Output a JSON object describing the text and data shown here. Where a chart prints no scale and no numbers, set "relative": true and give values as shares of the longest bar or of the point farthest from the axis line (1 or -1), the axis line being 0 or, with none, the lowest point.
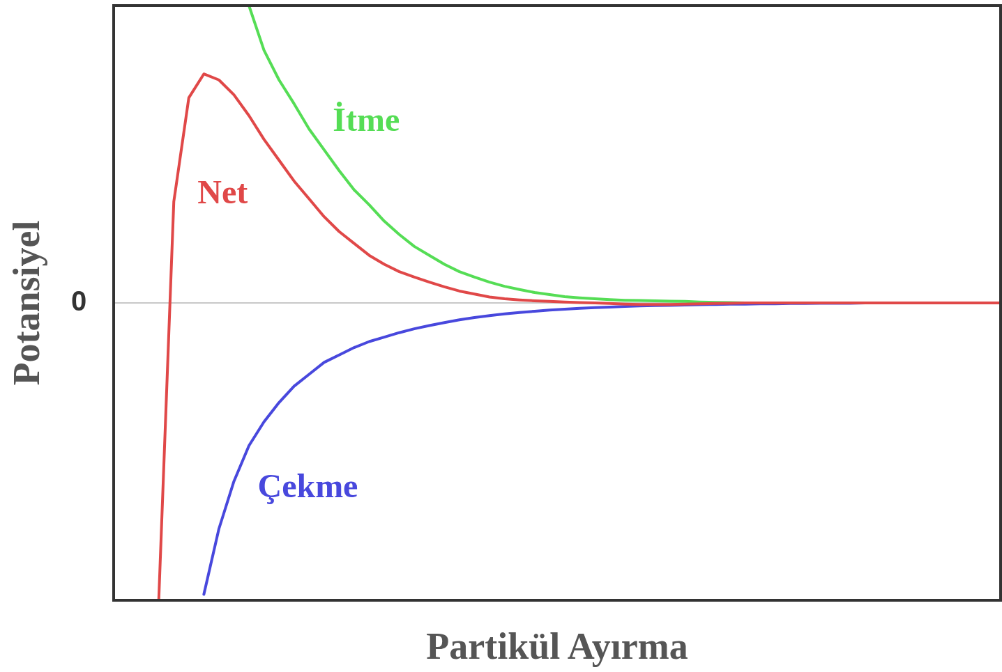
{
  "chart_data": {
    "type": "line",
    "relative": true,
    "xlabel": "Partikül Ayırma",
    "ylabel": "Potansiyel",
    "categories": [
      null,
      null,
      null,
      null,
      null,
      null,
      null,
      null,
      null,
      null,
      null,
      null,
      null,
      null,
      null,
      null,
      null,
      null,
      null,
      null,
      null,
      null,
      null,
      null,
      null,
      null,
      null,
      null,
      null,
      null,
      null,
      null,
      null,
      null,
      null,
      null,
      null,
      null,
      null,
      null,
      null,
      null,
      null,
      null,
      null,
      null,
      null,
      null,
      null,
      null,
      null,
      null,
      null,
      null,
      null,
      null,
      null,
      null,
      null,
      null
    ],
    "series": [
      {
        "name": "Net",
        "color": "#e04848",
        "values": [
          null,
          null,
          null,
          -1.0,
          0.34,
          0.69,
          0.77,
          0.75,
          0.7,
          0.63,
          0.55,
          0.48,
          0.41,
          0.35,
          0.29,
          0.24,
          0.2,
          0.16,
          0.13,
          0.105,
          0.087,
          0.07,
          0.054,
          0.04,
          0.03,
          0.02,
          0.014,
          0.01,
          0.007,
          0.005,
          0.003,
          0.001,
          0,
          -0.002,
          -0.004,
          -0.005,
          -0.005,
          -0.005,
          -0.004,
          -0.003,
          -0.002,
          -0.001,
          0,
          0,
          0,
          0,
          0,
          0,
          0,
          0,
          0,
          0,
          0,
          0,
          0,
          0,
          0,
          0,
          0,
          0
        ]
      },
      {
        "name": "İtme",
        "color": "#55dd55",
        "values": [
          null,
          null,
          null,
          null,
          null,
          null,
          null,
          null,
          null,
          1.0,
          0.85,
          0.75,
          0.67,
          0.585,
          0.515,
          0.445,
          0.38,
          0.33,
          0.275,
          0.23,
          0.19,
          0.16,
          0.13,
          0.105,
          0.087,
          0.07,
          0.056,
          0.045,
          0.035,
          0.028,
          0.021,
          0.017,
          0.014,
          0.011,
          0.009,
          0.008,
          0.007,
          0.006,
          0.005,
          0.003,
          0.002,
          0.001,
          0,
          null,
          null,
          null,
          null,
          null,
          null,
          null,
          null,
          null,
          null,
          null,
          null,
          null,
          null,
          null,
          null,
          null
        ]
      },
      {
        "name": "Çekme",
        "color": "#4848dd",
        "values": [
          null,
          null,
          null,
          null,
          null,
          null,
          -0.98,
          -0.76,
          -0.6,
          -0.48,
          -0.4,
          -0.335,
          -0.28,
          -0.24,
          -0.2,
          -0.175,
          -0.15,
          -0.13,
          -0.115,
          -0.1,
          -0.087,
          -0.076,
          -0.066,
          -0.057,
          -0.049,
          -0.043,
          -0.037,
          -0.032,
          -0.028,
          -0.024,
          -0.021,
          -0.018,
          -0.016,
          -0.014,
          -0.012,
          -0.01,
          -0.009,
          -0.008,
          -0.007,
          -0.006,
          -0.005,
          -0.004,
          -0.004,
          -0.003,
          -0.003,
          -0.002,
          -0.002,
          -0.001,
          -0.001,
          -0.001,
          0,
          null,
          null,
          null,
          null,
          null,
          null,
          null,
          null,
          null
        ]
      }
    ],
    "ref_lines": [
      {
        "axis": "y",
        "value": 0,
        "label": "0",
        "color": "#c8c8c8"
      }
    ]
  }
}
